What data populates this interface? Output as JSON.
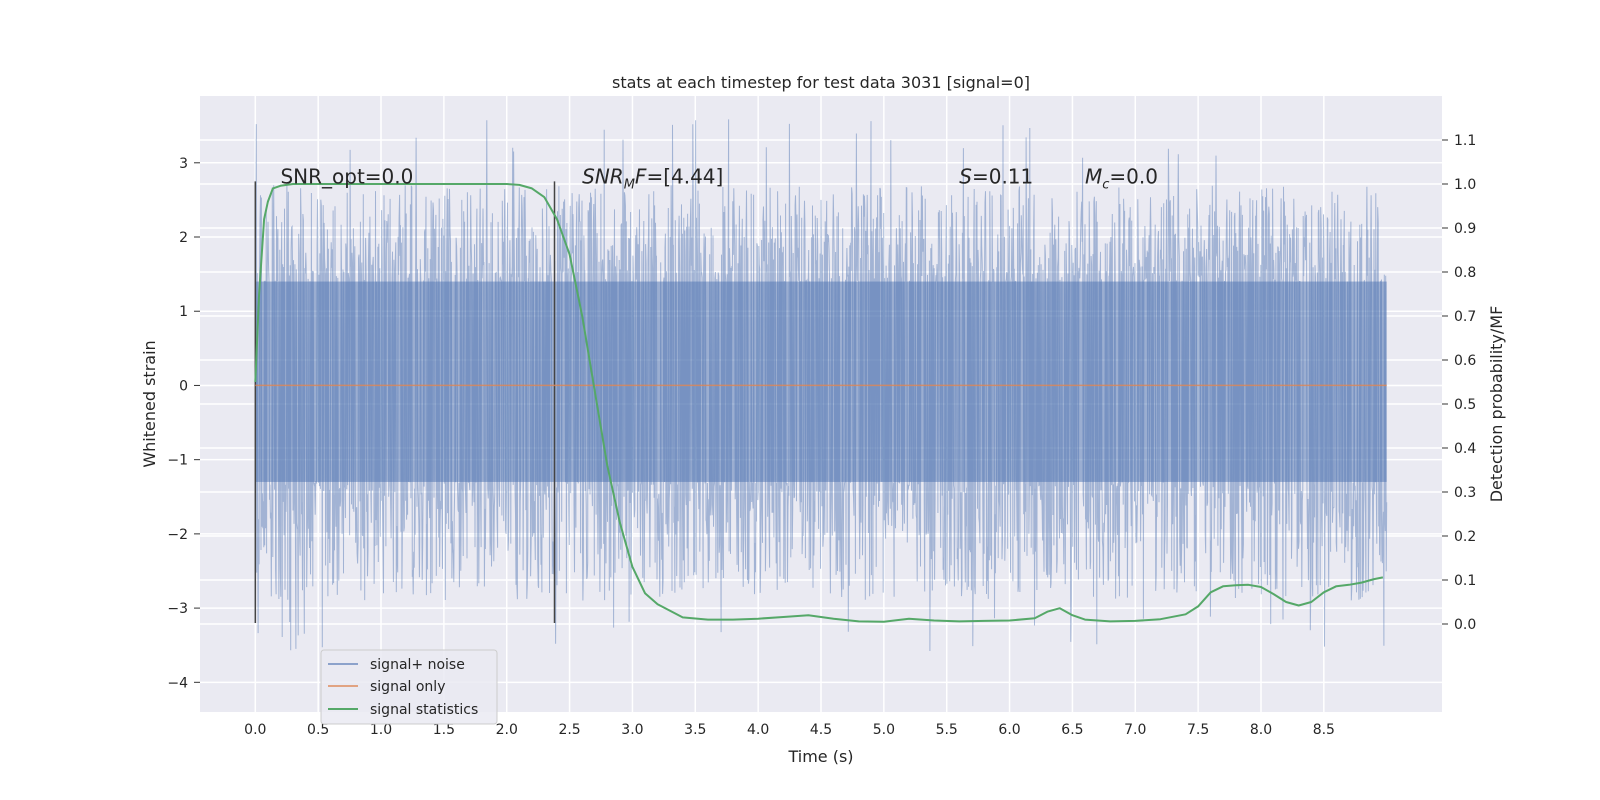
{
  "chart_data": {
    "type": "line",
    "title": "stats at each timestep for test data 3031 [signal=0]",
    "xlabel": "Time (s)",
    "ylabel": "Whitened strain",
    "ylabel_right": "Detection probability/MF",
    "xlim": [
      -0.44,
      9.44
    ],
    "ylim": [
      -4.4,
      3.9
    ],
    "ylim_right": [
      -0.2,
      1.2
    ],
    "x_ticks": [
      0.0,
      0.5,
      1.0,
      1.5,
      2.0,
      2.5,
      3.0,
      3.5,
      4.0,
      4.5,
      5.0,
      5.5,
      6.0,
      6.5,
      7.0,
      7.5,
      8.0,
      8.5
    ],
    "x_tick_labels": [
      "0.0",
      "0.5",
      "1.0",
      "1.5",
      "2.0",
      "2.5",
      "3.0",
      "3.5",
      "4.0",
      "4.5",
      "5.0",
      "5.5",
      "6.0",
      "6.5",
      "7.0",
      "7.5",
      "8.0",
      "8.5"
    ],
    "y_ticks": [
      -4,
      -3,
      -2,
      -1,
      0,
      1,
      2,
      3
    ],
    "y_tick_labels": [
      "−4",
      "−3",
      "−2",
      "−1",
      "0",
      "1",
      "2",
      "3"
    ],
    "y_right_ticks": [
      0.0,
      0.1,
      0.2,
      0.3,
      0.4,
      0.5,
      0.6,
      0.7,
      0.8,
      0.9,
      1.0,
      1.1
    ],
    "y_right_tick_labels": [
      "0.0",
      "0.1",
      "0.2",
      "0.3",
      "0.4",
      "0.5",
      "0.6",
      "0.7",
      "0.8",
      "0.9",
      "1.0",
      "1.1"
    ],
    "grid": true,
    "legend_placement": "lower-left",
    "annotations": {
      "snr_opt": {
        "name": "SNR_opt",
        "value": "=0.0",
        "x": 0.2,
        "y": 2.8
      },
      "snr_mf": {
        "base": "SNR",
        "sub": "M",
        "rest": "F",
        "value": "=[4.44]",
        "x": 2.6,
        "y": 2.8
      },
      "s": {
        "name": "S",
        "value": "=0.11",
        "x": 5.6,
        "y": 2.8
      },
      "mc": {
        "base": "M",
        "sub": "c",
        "value": "=0.0",
        "x": 6.6,
        "y": 2.8
      }
    },
    "vlines": [
      {
        "x": 0.0,
        "y0": -3.2,
        "y1": 2.75
      },
      {
        "x": 2.38,
        "y0": -3.2,
        "y1": 2.75
      }
    ],
    "noise_band": {
      "x_start": 0.0,
      "x_end": 9.0,
      "core_low": -1.3,
      "core_high": 1.4,
      "typical_max": 2.7,
      "typical_min": -2.9,
      "extreme_max": 3.6,
      "extreme_min": -3.65
    },
    "series": [
      {
        "name": "signal+ noise",
        "color": "#4c72b0",
        "axis": "left"
      },
      {
        "name": "signal only",
        "color": "#dd8452",
        "axis": "left",
        "x": [
          0.0,
          9.0
        ],
        "y": [
          0.0,
          0.0
        ]
      },
      {
        "name": "signal statistics",
        "color": "#55a868",
        "axis": "right",
        "x": [
          0.0,
          0.03,
          0.07,
          0.1,
          0.14,
          0.2,
          0.3,
          0.6,
          1.0,
          1.5,
          2.0,
          2.1,
          2.2,
          2.3,
          2.4,
          2.5,
          2.6,
          2.7,
          2.8,
          2.9,
          3.0,
          3.1,
          3.2,
          3.4,
          3.6,
          3.8,
          4.0,
          4.2,
          4.4,
          4.6,
          4.8,
          5.0,
          5.2,
          5.4,
          5.6,
          5.8,
          6.0,
          6.2,
          6.3,
          6.4,
          6.5,
          6.6,
          6.8,
          7.0,
          7.2,
          7.4,
          7.5,
          7.6,
          7.7,
          7.8,
          7.9,
          8.0,
          8.1,
          8.2,
          8.3,
          8.4,
          8.5,
          8.6,
          8.7,
          8.8,
          8.9,
          8.97
        ],
        "y": [
          0.55,
          0.75,
          0.92,
          0.96,
          0.99,
          0.996,
          1.0,
          1.0,
          1.0,
          1.0,
          1.0,
          0.998,
          0.99,
          0.97,
          0.92,
          0.84,
          0.7,
          0.53,
          0.36,
          0.23,
          0.13,
          0.07,
          0.045,
          0.015,
          0.01,
          0.01,
          0.012,
          0.016,
          0.02,
          0.012,
          0.006,
          0.005,
          0.012,
          0.008,
          0.006,
          0.007,
          0.008,
          0.013,
          0.028,
          0.036,
          0.02,
          0.01,
          0.006,
          0.007,
          0.011,
          0.022,
          0.04,
          0.072,
          0.086,
          0.088,
          0.089,
          0.084,
          0.068,
          0.05,
          0.042,
          0.05,
          0.072,
          0.086,
          0.089,
          0.094,
          0.102,
          0.106
        ]
      }
    ]
  }
}
